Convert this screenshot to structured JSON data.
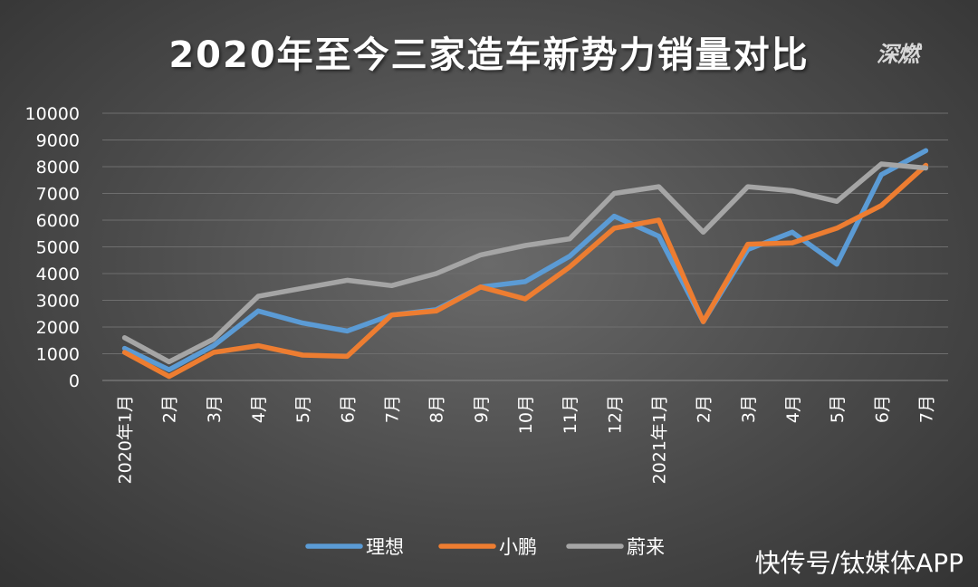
{
  "chart_data": {
    "type": "line",
    "title": "2020年至今三家造车新势力销量对比",
    "xlabel": "",
    "ylabel": "",
    "ylim": [
      0,
      10000
    ],
    "yticks": [
      0,
      1000,
      2000,
      3000,
      4000,
      5000,
      6000,
      7000,
      8000,
      9000,
      10000
    ],
    "grid": true,
    "legend_position": "bottom",
    "categories": [
      "2020年1月",
      "2月",
      "3月",
      "4月",
      "5月",
      "6月",
      "7月",
      "8月",
      "9月",
      "10月",
      "11月",
      "12月",
      "2021年1月",
      "2月",
      "3月",
      "4月",
      "5月",
      "6月",
      "7月"
    ],
    "series": [
      {
        "name": "理想",
        "color": "#5b9bd5",
        "values": [
          1200,
          400,
          1300,
          2600,
          2150,
          1850,
          2450,
          2650,
          3500,
          3700,
          4650,
          6150,
          5400,
          2200,
          4900,
          5550,
          4350,
          7700,
          8600
        ]
      },
      {
        "name": "小鹏",
        "color": "#ed7d31",
        "values": [
          1050,
          150,
          1050,
          1300,
          950,
          900,
          2450,
          2600,
          3500,
          3050,
          4250,
          5700,
          6000,
          2200,
          5100,
          5150,
          5700,
          6550,
          8050
        ]
      },
      {
        "name": "蔚来",
        "color": "#a5a5a5",
        "values": [
          1600,
          700,
          1550,
          3150,
          3450,
          3750,
          3550,
          4000,
          4700,
          5050,
          5300,
          7000,
          7250,
          5550,
          7250,
          7100,
          6700,
          8100,
          7950
        ]
      }
    ]
  },
  "branding": {
    "logo_text": "深燃",
    "watermark": "快传号/钛媒体APP"
  }
}
